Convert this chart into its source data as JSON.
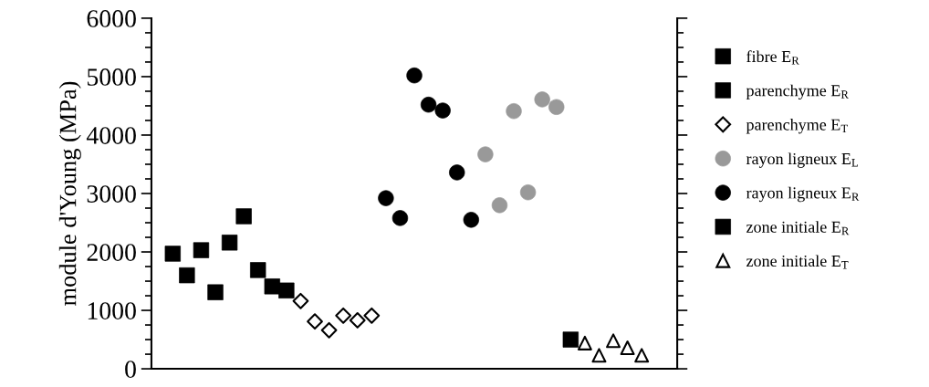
{
  "chart_data": {
    "type": "scatter",
    "ylabel": "module d'Young (MPa)",
    "categories": [
      null,
      null,
      null,
      null,
      null,
      null,
      null,
      null,
      null,
      null,
      null,
      null,
      null,
      null,
      null,
      null,
      null,
      null,
      null,
      null,
      null,
      null,
      null,
      null,
      null,
      null,
      null,
      null,
      null,
      null,
      null,
      null,
      null,
      null,
      null,
      null,
      null
    ],
    "ylim": [
      0,
      6000
    ],
    "yticks": [
      0,
      1000,
      2000,
      3000,
      4000,
      5000,
      6000
    ],
    "tick_labels": "y",
    "grid": false,
    "legend": "right",
    "series": [
      {
        "name": "fibre E$_{R}$",
        "color": "#000000",
        "marker": "square",
        "values": [
          null,
          1970,
          1600,
          2030,
          null,
          null,
          null,
          null,
          null,
          null,
          null,
          null,
          null,
          null,
          null,
          null,
          null,
          null,
          null,
          null,
          null,
          null,
          null,
          null,
          null,
          null,
          null,
          null,
          null,
          null,
          null,
          null,
          null,
          null,
          null,
          null,
          null
        ]
      },
      {
        "name": "parenchyme E$_{R}$",
        "color": "#000000",
        "marker": "square",
        "values": [
          null,
          null,
          null,
          null,
          1310,
          2160,
          2610,
          1690,
          1410,
          1340,
          null,
          null,
          null,
          null,
          null,
          null,
          null,
          null,
          null,
          null,
          null,
          null,
          null,
          null,
          null,
          null,
          null,
          null,
          null,
          null,
          null,
          null,
          null,
          null,
          null,
          null,
          null
        ]
      },
      {
        "name": "parenchyme E$_{T}$",
        "color": "#000000",
        "marker": "diamond",
        "values": [
          null,
          null,
          null,
          null,
          null,
          null,
          null,
          null,
          null,
          null,
          1160,
          810,
          660,
          910,
          830,
          910,
          null,
          null,
          null,
          null,
          null,
          null,
          null,
          null,
          null,
          null,
          null,
          null,
          null,
          null,
          null,
          null,
          null,
          null,
          null,
          null,
          null
        ]
      },
      {
        "name": "rayon ligneux E$_{L}$",
        "color": "#999999",
        "marker": "circle",
        "values": [
          null,
          null,
          null,
          null,
          null,
          null,
          null,
          null,
          null,
          null,
          null,
          null,
          null,
          null,
          null,
          null,
          null,
          null,
          null,
          null,
          null,
          null,
          null,
          3670,
          2800,
          4410,
          3020,
          4610,
          4480,
          null,
          null,
          null,
          null,
          null,
          null,
          null,
          null
        ]
      },
      {
        "name": "rayon ligneux E$_{R}$",
        "color": "#000000",
        "marker": "circle",
        "values": [
          null,
          null,
          null,
          null,
          null,
          null,
          null,
          null,
          null,
          null,
          null,
          null,
          null,
          null,
          null,
          null,
          2920,
          2580,
          5020,
          4520,
          4420,
          3360,
          2550,
          null,
          null,
          null,
          null,
          null,
          null,
          null,
          null,
          null,
          null,
          null,
          null,
          null,
          null
        ]
      },
      {
        "name": "zone initiale E$_{R}$",
        "color": "#000000",
        "marker": "square",
        "values": [
          null,
          null,
          null,
          null,
          null,
          null,
          null,
          null,
          null,
          null,
          null,
          null,
          null,
          null,
          null,
          null,
          null,
          null,
          null,
          null,
          null,
          null,
          null,
          null,
          null,
          null,
          null,
          null,
          null,
          500,
          null,
          null,
          null,
          null,
          null,
          null,
          null
        ]
      },
      {
        "name": "zone initiale E$_{T}$",
        "color": "#000000",
        "marker": "triangle",
        "values": [
          null,
          null,
          null,
          null,
          null,
          null,
          null,
          null,
          null,
          null,
          null,
          null,
          null,
          null,
          null,
          null,
          null,
          null,
          null,
          null,
          null,
          null,
          null,
          null,
          null,
          null,
          null,
          null,
          null,
          null,
          440,
          230,
          480,
          360,
          230,
          null,
          null
        ]
      }
    ]
  }
}
